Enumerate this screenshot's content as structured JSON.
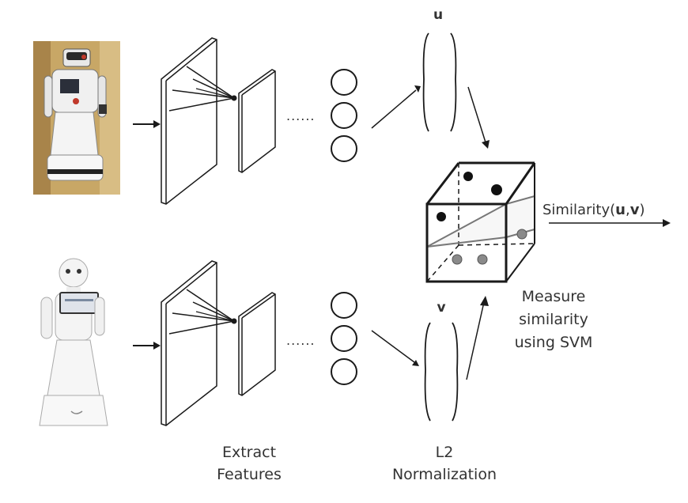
{
  "labels": {
    "vector_u": "u",
    "vector_v": "v",
    "similarity_prefix": "Similarity(",
    "similarity_u": "u",
    "similarity_comma": ",",
    "similarity_v": "v",
    "similarity_suffix": ")",
    "measure_line1": "Measure",
    "measure_line2": "similarity",
    "measure_line3": "using SVM",
    "extract_line1": "Extract",
    "extract_line2": "Features",
    "norm_line1": "L2",
    "norm_line2": "Normalization",
    "ellipsis_top": "......",
    "ellipsis_bottom": "......"
  },
  "colors": {
    "line": "#1a1a1a",
    "text": "#333333",
    "point_dark": "#111111",
    "point_gray": "#8a8a8a",
    "robot_top_bg": "#c9a96a",
    "robot_body": "#f2f2f2"
  }
}
